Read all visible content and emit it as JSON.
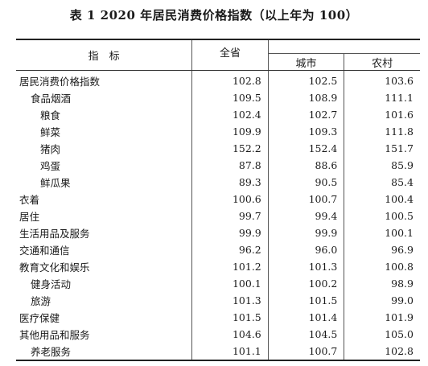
{
  "title": "表 1  2020 年居民消费价格指数（以上年为 100）",
  "headers": {
    "indicator": "指　标",
    "national": "全省",
    "urban": "城市",
    "rural": "农村"
  },
  "rows": [
    {
      "name": "居民消费价格指数",
      "level": 0,
      "national": "102.8",
      "urban": "102.5",
      "rural": "103.6"
    },
    {
      "name": "食品烟酒",
      "level": 1,
      "national": "109.5",
      "urban": "108.9",
      "rural": "111.1"
    },
    {
      "name": "粮食",
      "level": 2,
      "national": "102.4",
      "urban": "102.7",
      "rural": "101.6"
    },
    {
      "name": "鲜菜",
      "level": 2,
      "national": "109.9",
      "urban": "109.3",
      "rural": "111.8"
    },
    {
      "name": "猪肉",
      "level": 2,
      "national": "152.2",
      "urban": "152.4",
      "rural": "151.7"
    },
    {
      "name": "鸡蛋",
      "level": 2,
      "national": "87.8",
      "urban": "88.6",
      "rural": "85.9"
    },
    {
      "name": "鲜瓜果",
      "level": 2,
      "national": "89.3",
      "urban": "90.5",
      "rural": "85.4"
    },
    {
      "name": "衣着",
      "level": 0,
      "national": "100.6",
      "urban": "100.7",
      "rural": "100.4"
    },
    {
      "name": "居住",
      "level": 0,
      "national": "99.7",
      "urban": "99.4",
      "rural": "100.5"
    },
    {
      "name": "生活用品及服务",
      "level": 0,
      "national": "99.9",
      "urban": "99.9",
      "rural": "100.1"
    },
    {
      "name": "交通和通信",
      "level": 0,
      "national": "96.2",
      "urban": "96.0",
      "rural": "96.9"
    },
    {
      "name": "教育文化和娱乐",
      "level": 0,
      "national": "101.2",
      "urban": "101.3",
      "rural": "100.8"
    },
    {
      "name": "健身活动",
      "level": 1,
      "national": "100.1",
      "urban": "100.2",
      "rural": "98.9"
    },
    {
      "name": "旅游",
      "level": 1,
      "national": "101.3",
      "urban": "101.5",
      "rural": "99.0"
    },
    {
      "name": "医疗保健",
      "level": 0,
      "national": "101.5",
      "urban": "101.4",
      "rural": "101.9"
    },
    {
      "name": "其他用品和服务",
      "level": 0,
      "national": "104.6",
      "urban": "104.5",
      "rural": "105.0"
    },
    {
      "name": "养老服务",
      "level": 1,
      "national": "101.1",
      "urban": "100.7",
      "rural": "102.8"
    }
  ]
}
